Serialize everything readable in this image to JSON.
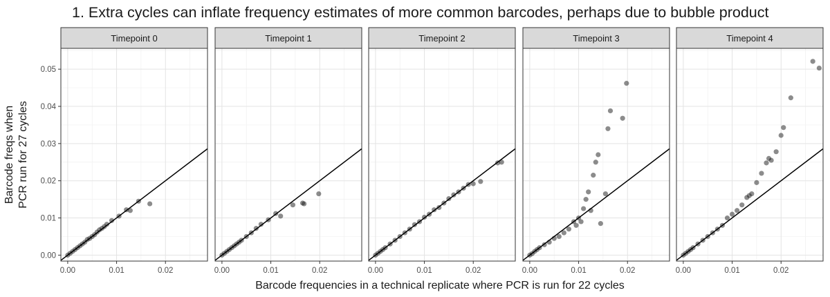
{
  "title": "1. Extra cycles can inflate frequency estimates of more common barcodes, perhaps due to bubble product",
  "chart_data": {
    "type": "scatter",
    "facet_titles": [
      "Timepoint 0",
      "Timepoint 1",
      "Timepoint 2",
      "Timepoint 3",
      "Timepoint 4"
    ],
    "xlabel": "Barcode frequencies in a technical replicate where PCR is run for 22 cycles",
    "ylabel_lines": [
      "Barcode freqs when",
      "PCR run for 27 cycles"
    ],
    "xlim": [
      -0.0014,
      0.0286
    ],
    "ylim": [
      -0.0016,
      0.0556
    ],
    "x_ticks": [
      0.0,
      0.01,
      0.02
    ],
    "x_tick_labels": [
      "0.00",
      "0.01",
      "0.02"
    ],
    "y_ticks": [
      0.0,
      0.01,
      0.02,
      0.03,
      0.04,
      0.05
    ],
    "y_tick_labels": [
      "0.00",
      "0.01",
      "0.02",
      "0.03",
      "0.04",
      "0.05"
    ],
    "reference_line": {
      "slope": 1.0,
      "intercept": 0.0
    },
    "grid": true,
    "point_color": "#1a1a1a",
    "point_opacity": 0.5,
    "panels": [
      {
        "name": "Timepoint 0",
        "points": [
          [
            0,
            0
          ],
          [
            0.0005,
            0.0005
          ],
          [
            0.001,
            0.001
          ],
          [
            0.0015,
            0.0015
          ],
          [
            0.002,
            0.002
          ],
          [
            0.0025,
            0.0025
          ],
          [
            0.003,
            0.003
          ],
          [
            0.0035,
            0.0035
          ],
          [
            0.004,
            0.0042
          ],
          [
            0.0045,
            0.0045
          ],
          [
            0.005,
            0.005
          ],
          [
            0.0055,
            0.0055
          ],
          [
            0.006,
            0.0062
          ],
          [
            0.0065,
            0.0068
          ],
          [
            0.007,
            0.0072
          ],
          [
            0.0075,
            0.0077
          ],
          [
            0.008,
            0.0083
          ],
          [
            0.009,
            0.0093
          ],
          [
            0.0105,
            0.0105
          ],
          [
            0.012,
            0.0122
          ],
          [
            0.0128,
            0.012
          ],
          [
            0.0145,
            0.0145
          ],
          [
            0.0168,
            0.0138
          ]
        ]
      },
      {
        "name": "Timepoint 1",
        "points": [
          [
            0,
            0
          ],
          [
            0.0005,
            0.0005
          ],
          [
            0.001,
            0.001
          ],
          [
            0.0015,
            0.0015
          ],
          [
            0.002,
            0.002
          ],
          [
            0.0025,
            0.0025
          ],
          [
            0.003,
            0.003
          ],
          [
            0.0035,
            0.0035
          ],
          [
            0.004,
            0.004
          ],
          [
            0.005,
            0.005
          ],
          [
            0.006,
            0.006
          ],
          [
            0.007,
            0.0072
          ],
          [
            0.008,
            0.0083
          ],
          [
            0.0095,
            0.0095
          ],
          [
            0.011,
            0.0112
          ],
          [
            0.012,
            0.0105
          ],
          [
            0.0145,
            0.0135
          ],
          [
            0.0165,
            0.014
          ],
          [
            0.0168,
            0.0138
          ],
          [
            0.0198,
            0.0165
          ]
        ]
      },
      {
        "name": "Timepoint 2",
        "points": [
          [
            0,
            0
          ],
          [
            0.0005,
            0.0005
          ],
          [
            0.001,
            0.001
          ],
          [
            0.0015,
            0.0015
          ],
          [
            0.002,
            0.002
          ],
          [
            0.003,
            0.003
          ],
          [
            0.004,
            0.004
          ],
          [
            0.005,
            0.005
          ],
          [
            0.006,
            0.006
          ],
          [
            0.007,
            0.007
          ],
          [
            0.008,
            0.0082
          ],
          [
            0.009,
            0.009
          ],
          [
            0.01,
            0.0102
          ],
          [
            0.011,
            0.011
          ],
          [
            0.012,
            0.0122
          ],
          [
            0.013,
            0.0128
          ],
          [
            0.014,
            0.014
          ],
          [
            0.015,
            0.0152
          ],
          [
            0.016,
            0.0162
          ],
          [
            0.017,
            0.017
          ],
          [
            0.018,
            0.018
          ],
          [
            0.019,
            0.019
          ],
          [
            0.02,
            0.0192
          ],
          [
            0.0215,
            0.0198
          ],
          [
            0.025,
            0.0248
          ],
          [
            0.0258,
            0.025
          ]
        ]
      },
      {
        "name": "Timepoint 3",
        "points": [
          [
            0,
            0
          ],
          [
            0.0005,
            0.0004
          ],
          [
            0.001,
            0.001
          ],
          [
            0.0015,
            0.0015
          ],
          [
            0.002,
            0.002
          ],
          [
            0.003,
            0.0028
          ],
          [
            0.004,
            0.0035
          ],
          [
            0.005,
            0.0045
          ],
          [
            0.006,
            0.005
          ],
          [
            0.007,
            0.006
          ],
          [
            0.008,
            0.007
          ],
          [
            0.009,
            0.009
          ],
          [
            0.0095,
            0.008
          ],
          [
            0.01,
            0.01
          ],
          [
            0.0105,
            0.009
          ],
          [
            0.011,
            0.0125
          ],
          [
            0.0115,
            0.015
          ],
          [
            0.012,
            0.017
          ],
          [
            0.0125,
            0.012
          ],
          [
            0.013,
            0.0215
          ],
          [
            0.0135,
            0.025
          ],
          [
            0.014,
            0.027
          ],
          [
            0.0145,
            0.0085
          ],
          [
            0.0155,
            0.0165
          ],
          [
            0.016,
            0.034
          ],
          [
            0.0165,
            0.0388
          ],
          [
            0.019,
            0.0368
          ],
          [
            0.0198,
            0.0462
          ]
        ]
      },
      {
        "name": "Timepoint 4",
        "points": [
          [
            0,
            0
          ],
          [
            0.0005,
            0.0005
          ],
          [
            0.001,
            0.001
          ],
          [
            0.0015,
            0.0015
          ],
          [
            0.002,
            0.002
          ],
          [
            0.003,
            0.003
          ],
          [
            0.004,
            0.004
          ],
          [
            0.005,
            0.005
          ],
          [
            0.006,
            0.006
          ],
          [
            0.007,
            0.007
          ],
          [
            0.008,
            0.008
          ],
          [
            0.009,
            0.01
          ],
          [
            0.01,
            0.011
          ],
          [
            0.011,
            0.012
          ],
          [
            0.012,
            0.0135
          ],
          [
            0.013,
            0.0155
          ],
          [
            0.0135,
            0.016
          ],
          [
            0.014,
            0.0165
          ],
          [
            0.015,
            0.0195
          ],
          [
            0.016,
            0.022
          ],
          [
            0.017,
            0.0248
          ],
          [
            0.0175,
            0.026
          ],
          [
            0.018,
            0.0255
          ],
          [
            0.019,
            0.0278
          ],
          [
            0.02,
            0.0322
          ],
          [
            0.0205,
            0.0343
          ],
          [
            0.022,
            0.0423
          ],
          [
            0.0265,
            0.0521
          ],
          [
            0.0278,
            0.0503
          ]
        ]
      }
    ]
  }
}
